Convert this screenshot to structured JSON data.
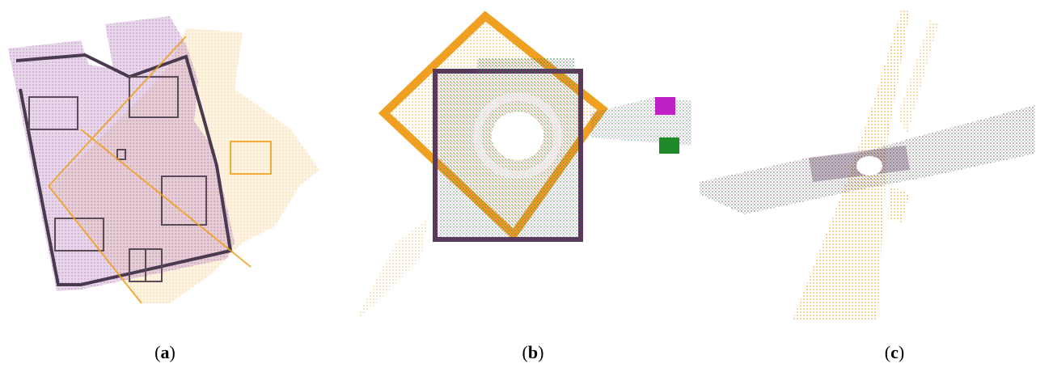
{
  "panels": [
    {
      "id": "a",
      "letter": "a"
    },
    {
      "id": "b",
      "letter": "b"
    },
    {
      "id": "c",
      "letter": "c"
    }
  ],
  "colors": {
    "source_cloud": "#f0a020",
    "target_cloud_magenta": "#c020c8",
    "target_cloud_green": "#1e8a2a",
    "wall_dark": "#4a3a50"
  }
}
